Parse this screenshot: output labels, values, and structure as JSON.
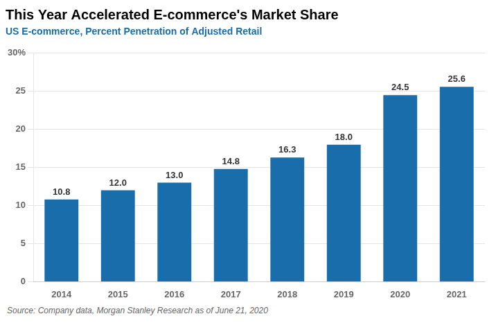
{
  "chart_data": {
    "type": "bar",
    "title": "This Year Accelerated E-commerce's Market Share",
    "subtitle": "US E-commerce, Percent Penetration of Adjusted Retail",
    "annotations": [
      "Source: Company data, Morgan Stanley Research as of June 21, 2020"
    ],
    "categories": [
      "2014",
      "2015",
      "2016",
      "2017",
      "2018",
      "2019",
      "2020",
      "2021"
    ],
    "values": [
      10.8,
      12.0,
      13.0,
      14.8,
      16.3,
      18.0,
      24.5,
      25.6
    ],
    "value_labels": [
      "10.8",
      "12.0",
      "13.0",
      "14.8",
      "16.3",
      "18.0",
      "24.5",
      "25.6"
    ],
    "color": "#1A6DAB",
    "ylim": [
      0,
      30
    ],
    "yticks": [
      0,
      5,
      10,
      15,
      20,
      25,
      {
        "value": 30,
        "label": "30%"
      }
    ],
    "grid": true,
    "data_labels": true
  }
}
